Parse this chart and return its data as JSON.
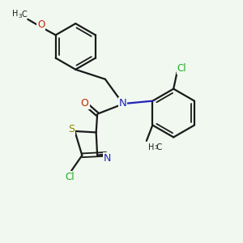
{
  "bg_color": "#f0f8f0",
  "bond_color": "#1a1a1a",
  "n_color": "#2222bb",
  "o_color": "#cc2200",
  "s_color": "#888800",
  "cl_color": "#22aa22",
  "lw": 1.6,
  "lw2": 1.3,
  "off": 0.09,
  "xlim": [
    0,
    10
  ],
  "ylim": [
    0,
    10
  ]
}
